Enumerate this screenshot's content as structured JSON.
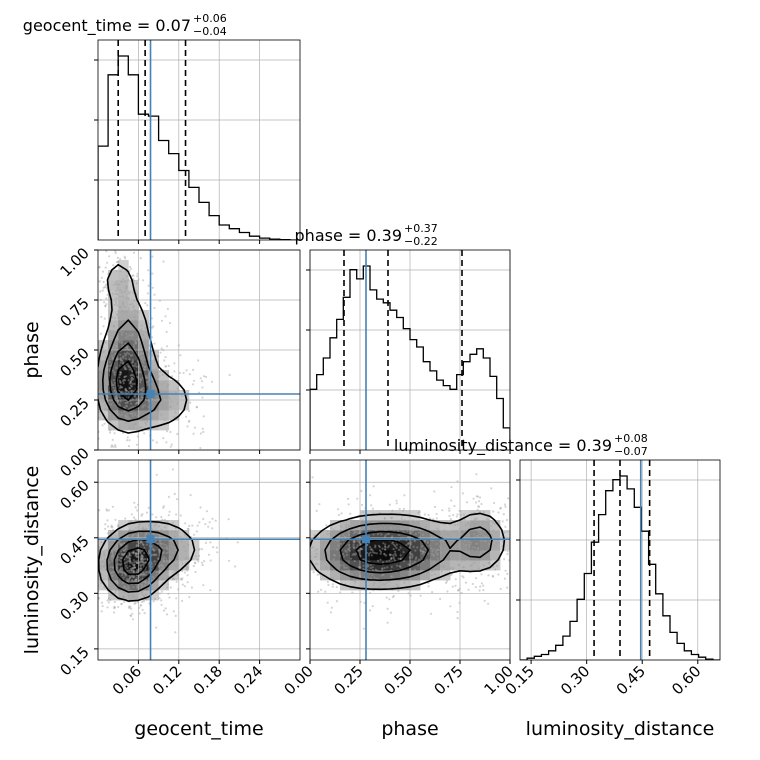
{
  "chart_data": {
    "type": "corner",
    "parameters": [
      {
        "name": "geocent_time",
        "range": [
          0.0,
          0.3
        ],
        "ticks": [
          0.06,
          0.12,
          0.18,
          0.24
        ],
        "tick_labels": [
          "0.06",
          "0.12",
          "0.18",
          "0.24"
        ],
        "truth": 0.078,
        "quantiles": [
          0.03,
          0.07,
          0.13
        ],
        "title_main": "geocent_time = 0.07",
        "title_plus": "+0.06",
        "title_minus": "−0.04",
        "hist_counts": [
          0.5,
          0.88,
          0.98,
          0.88,
          0.67,
          0.66,
          0.53,
          0.46,
          0.37,
          0.28,
          0.2,
          0.13,
          0.08,
          0.06,
          0.04,
          0.02,
          0.01,
          0.005,
          0.002,
          0.0
        ]
      },
      {
        "name": "phase",
        "range": [
          0.0,
          1.0
        ],
        "ticks": [
          0.0,
          0.25,
          0.5,
          0.75,
          1.0
        ],
        "tick_labels": [
          "0.00",
          "0.25",
          "0.50",
          "0.75",
          "1.00"
        ],
        "truth": 0.28,
        "quantiles": [
          0.17,
          0.39,
          0.76
        ],
        "title_main": "phase = 0.39",
        "title_plus": "+0.37",
        "title_minus": "−0.22",
        "hist_counts": [
          0.33,
          0.41,
          0.5,
          0.61,
          0.71,
          0.83,
          0.98,
          0.93,
          1.0,
          0.87,
          0.82,
          0.8,
          0.76,
          0.72,
          0.66,
          0.6,
          0.56,
          0.48,
          0.43,
          0.38,
          0.35,
          0.33,
          0.41,
          0.48,
          0.52,
          0.55,
          0.5,
          0.4,
          0.28,
          0.12
        ]
      },
      {
        "name": "luminosity_distance",
        "range": [
          0.12,
          0.66
        ],
        "ticks": [
          0.15,
          0.3,
          0.45,
          0.6
        ],
        "tick_labels": [
          "0.15",
          "0.30",
          "0.45",
          "0.60"
        ],
        "truth": 0.446,
        "quantiles": [
          0.32,
          0.39,
          0.47
        ],
        "title_main": "luminosity_distance = 0.39",
        "title_plus": "+0.08",
        "title_minus": "−0.07",
        "hist_counts": [
          0.0,
          0.01,
          0.02,
          0.03,
          0.05,
          0.08,
          0.13,
          0.21,
          0.33,
          0.47,
          0.64,
          0.79,
          0.92,
          0.98,
          1.0,
          0.93,
          0.83,
          0.7,
          0.52,
          0.36,
          0.24,
          0.15,
          0.09,
          0.05,
          0.03,
          0.015,
          0.005,
          0.0
        ]
      }
    ],
    "density_peaks": {
      "phase_vs_geocent_time": [
        {
          "x": 0.04,
          "y": 0.33,
          "s": [
            0.022,
            0.12
          ],
          "w": 1.0
        },
        {
          "x": 0.045,
          "y": 0.55,
          "s": [
            0.02,
            0.15
          ],
          "w": 0.45
        },
        {
          "x": 0.03,
          "y": 0.85,
          "s": [
            0.016,
            0.08
          ],
          "w": 0.25
        },
        {
          "x": 0.09,
          "y": 0.25,
          "s": [
            0.035,
            0.1
          ],
          "w": 0.35
        }
      ],
      "luminosity_distance_vs_geocent_time": [
        {
          "x": 0.05,
          "y": 0.375,
          "s": [
            0.025,
            0.05
          ],
          "w": 1.0
        },
        {
          "x": 0.09,
          "y": 0.42,
          "s": [
            0.035,
            0.045
          ],
          "w": 0.5
        }
      ],
      "luminosity_distance_vs_phase": [
        {
          "x": 0.32,
          "y": 0.41,
          "s": [
            0.17,
            0.05
          ],
          "w": 1.0
        },
        {
          "x": 0.85,
          "y": 0.44,
          "s": [
            0.08,
            0.05
          ],
          "w": 0.45
        },
        {
          "x": 0.55,
          "y": 0.42,
          "s": [
            0.15,
            0.05
          ],
          "w": 0.35
        }
      ]
    },
    "colors": {
      "truth": "#4682b4",
      "hist": "#000000",
      "quantile": "#000000",
      "scatter": "#a0a0a0",
      "grid": "#b0b0b0"
    },
    "grid": true
  }
}
